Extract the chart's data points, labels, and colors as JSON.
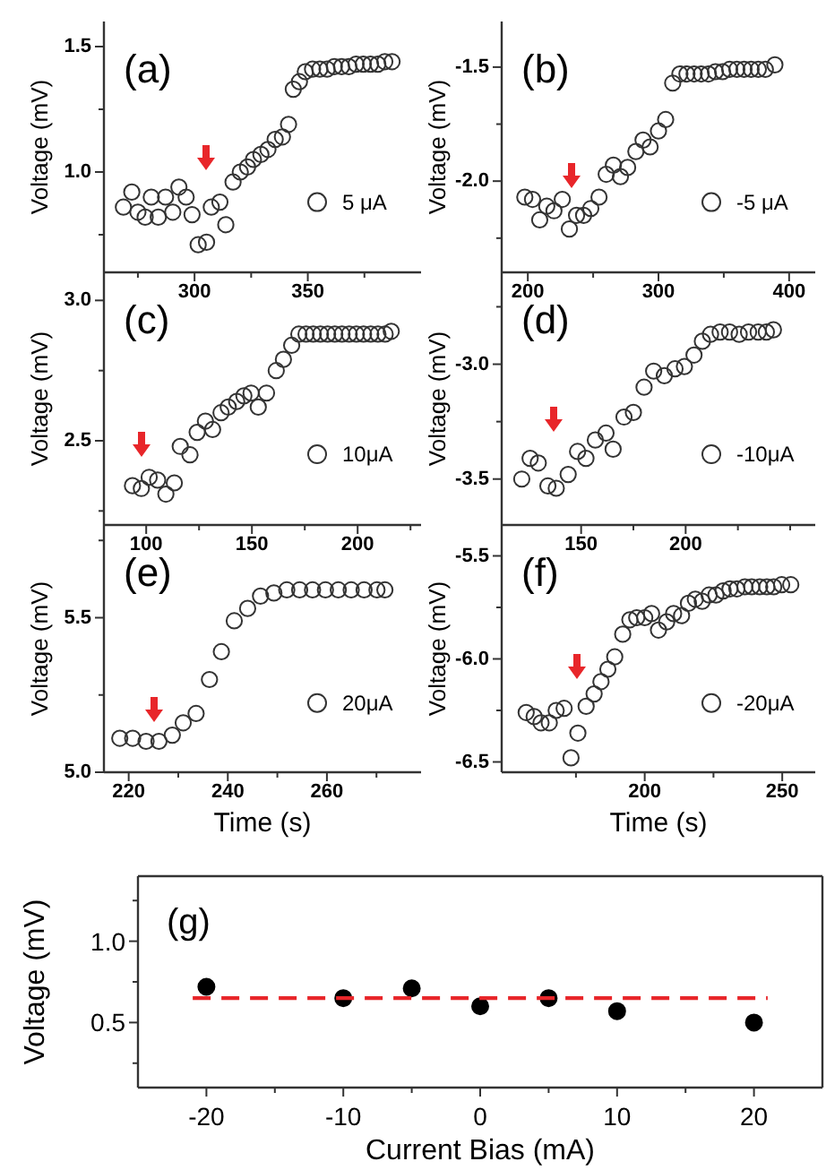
{
  "chart_data": [
    {
      "type": "scatter",
      "title": "(a)",
      "ylabel": "Voltage (mV)",
      "xlim": [
        260,
        400
      ],
      "ylim": [
        0.6,
        1.6
      ],
      "xticks": [
        {
          "value": 275,
          "label": null
        },
        300,
        {
          "value": 325,
          "label": null
        },
        350,
        {
          "value": 375,
          "label": null
        }
      ],
      "yticks": [
        {
          "value": 0.75,
          "label": null
        },
        {
          "value": 1,
          "label": "1.0"
        },
        {
          "value": 1.25,
          "label": null
        },
        1.5
      ],
      "marker": "circle",
      "legend": "right",
      "series": [
        {
          "name": "5 μA",
          "color": "#333333",
          "x": [
            268.6,
            272.3,
            275,
            278.2,
            280.9,
            284,
            287.2,
            290.4,
            293.1,
            296.3,
            298.9,
            301.6,
            305.3,
            307.4,
            311.2,
            313.8,
            317,
            320.2,
            323.4,
            326,
            329.3,
            332.4,
            335.6,
            338.8,
            341.5,
            343.6,
            346.3,
            348.9,
            352.1,
            355.3,
            358.5,
            361.7,
            364.9,
            368.1,
            371.3,
            374.5,
            377.7,
            380.9,
            384,
            387.2
          ],
          "values": [
            0.86,
            0.92,
            0.84,
            0.82,
            0.9,
            0.82,
            0.9,
            0.84,
            0.94,
            0.9,
            0.83,
            0.71,
            0.72,
            0.86,
            0.88,
            0.79,
            0.96,
            1.0,
            1.02,
            1.05,
            1.07,
            1.09,
            1.13,
            1.14,
            1.19,
            1.33,
            1.36,
            1.4,
            1.41,
            1.41,
            1.41,
            1.42,
            1.42,
            1.42,
            1.43,
            1.43,
            1.43,
            1.43,
            1.44,
            1.44
          ]
        }
      ]
    },
    {
      "type": "scatter",
      "title": "(b)",
      "ylabel": "Voltage (mV)",
      "xlim": [
        180,
        420
      ],
      "ylim": [
        -2.4,
        -1.3
      ],
      "xticks": [
        200,
        {
          "value": 250,
          "label": null
        },
        300,
        {
          "value": 350,
          "label": null
        },
        400
      ],
      "yticks": [
        {
          "value": -2.25,
          "label": null
        },
        {
          "value": -2,
          "label": "-2.0"
        },
        {
          "value": -1.75,
          "label": null
        },
        -1.5
      ],
      "marker": "circle",
      "legend": "right",
      "series": [
        {
          "name": "-5 μA",
          "color": "#333333",
          "x": [
            197.7,
            203.6,
            209.1,
            214.5,
            220,
            226.4,
            231.8,
            237.3,
            242.7,
            248.2,
            254.5,
            260,
            265.5,
            270.9,
            276.4,
            282.7,
            288.2,
            293.6,
            300,
            305.5,
            310.9,
            316.4,
            321.8,
            327.3,
            332.7,
            338.2,
            343.6,
            349.1,
            354.5,
            360,
            365.5,
            370.9,
            376.4,
            381.8,
            389.1
          ],
          "values": [
            -2.07,
            -2.08,
            -2.17,
            -2.11,
            -2.13,
            -2.08,
            -2.21,
            -2.15,
            -2.15,
            -2.12,
            -2.07,
            -1.97,
            -1.93,
            -1.98,
            -1.94,
            -1.87,
            -1.82,
            -1.85,
            -1.78,
            -1.73,
            -1.57,
            -1.53,
            -1.53,
            -1.53,
            -1.53,
            -1.53,
            -1.52,
            -1.52,
            -1.51,
            -1.51,
            -1.51,
            -1.51,
            -1.51,
            -1.51,
            -1.49
          ]
        }
      ]
    },
    {
      "type": "scatter",
      "title": "(c)",
      "ylabel": "Voltage (mV)",
      "xlim": [
        80,
        230
      ],
      "ylim": [
        2.2,
        3.1
      ],
      "xticks": [
        100,
        {
          "value": 125,
          "label": null
        },
        150,
        {
          "value": 175,
          "label": null
        },
        200,
        {
          "value": 225,
          "label": null
        }
      ],
      "yticks": [
        {
          "value": 2.25,
          "label": null
        },
        2.5,
        {
          "value": 2.75,
          "label": null
        },
        {
          "value": 3,
          "label": "3.0"
        }
      ],
      "marker": "circle",
      "legend": "right",
      "series": [
        {
          "name": "10μA",
          "color": "#333333",
          "x": [
            93.5,
            97.7,
            101.4,
            105.4,
            109.3,
            113.3,
            116.1,
            120.7,
            124.1,
            128,
            131.4,
            135.4,
            138.8,
            142.8,
            146.2,
            149.6,
            153,
            156.9,
            161.5,
            164.9,
            168.8,
            172.2,
            175.6,
            179,
            182.4,
            185.8,
            189.2,
            192.6,
            196,
            199.4,
            202.8,
            206.2,
            209.6,
            213,
            215.9
          ],
          "values": [
            2.34,
            2.33,
            2.37,
            2.36,
            2.31,
            2.35,
            2.48,
            2.45,
            2.53,
            2.57,
            2.54,
            2.6,
            2.62,
            2.64,
            2.66,
            2.67,
            2.62,
            2.67,
            2.75,
            2.79,
            2.84,
            2.88,
            2.88,
            2.88,
            2.88,
            2.88,
            2.88,
            2.88,
            2.88,
            2.88,
            2.88,
            2.88,
            2.88,
            2.88,
            2.89
          ]
        }
      ]
    },
    {
      "type": "scatter",
      "title": "(d)",
      "ylabel": "Voltage (mV)",
      "xlim": [
        112,
        262
      ],
      "ylim": [
        -3.7,
        -2.6
      ],
      "xticks": [
        150,
        {
          "value": 175,
          "label": null
        },
        200,
        {
          "value": 225,
          "label": null
        },
        {
          "value": 250,
          "label": null
        }
      ],
      "yticks": [
        -3.5,
        {
          "value": -3.25,
          "label": null
        },
        {
          "value": -3,
          "label": "-3.0"
        },
        {
          "value": -2.75,
          "label": null
        }
      ],
      "marker": "circle",
      "legend": "right",
      "series": [
        {
          "name": "-10μA",
          "color": "#333333",
          "x": [
            121.6,
            125.6,
            129.5,
            134.1,
            138.1,
            143.8,
            148.3,
            152.3,
            156.8,
            161.9,
            165.3,
            170.5,
            175,
            180.1,
            184.7,
            189.8,
            194.9,
            199.4,
            204,
            208,
            211.9,
            216.5,
            221,
            225.6,
            230.1,
            234.7,
            238.6,
            242
          ],
          "values": [
            -3.5,
            -3.41,
            -3.43,
            -3.53,
            -3.54,
            -3.48,
            -3.38,
            -3.41,
            -3.33,
            -3.3,
            -3.37,
            -3.23,
            -3.21,
            -3.1,
            -3.03,
            -3.05,
            -3.02,
            -3.01,
            -2.96,
            -2.9,
            -2.87,
            -2.86,
            -2.86,
            -2.87,
            -2.86,
            -2.86,
            -2.86,
            -2.85
          ]
        }
      ]
    },
    {
      "type": "scatter",
      "title": "(e)",
      "xlabel": "Time (s)",
      "ylabel": "Voltage (mV)",
      "xlim": [
        215,
        279
      ],
      "ylim": [
        5.0,
        5.8
      ],
      "xticks": [
        220,
        {
          "value": 230,
          "label": null
        },
        240,
        {
          "value": 250,
          "label": null
        },
        260,
        {
          "value": 270,
          "label": null
        }
      ],
      "yticks": [
        {
          "value": 5,
          "label": "5.0"
        },
        {
          "value": 5.25,
          "label": null
        },
        5.5,
        {
          "value": 5.75,
          "label": null
        }
      ],
      "marker": "circle",
      "legend": "right",
      "series": [
        {
          "name": "20μA",
          "color": "#333333",
          "x": [
            218.2,
            220.8,
            223.5,
            226.1,
            228.8,
            231,
            233.6,
            236.3,
            238.7,
            241.3,
            244,
            246.6,
            249.3,
            251.9,
            254.5,
            257.1,
            259.7,
            262.3,
            264.9,
            267.5,
            270.1,
            271.7
          ],
          "values": [
            5.11,
            5.11,
            5.1,
            5.1,
            5.12,
            5.16,
            5.19,
            5.3,
            5.39,
            5.49,
            5.53,
            5.57,
            5.58,
            5.59,
            5.59,
            5.59,
            5.59,
            5.59,
            5.59,
            5.59,
            5.59,
            5.59
          ]
        }
      ]
    },
    {
      "type": "scatter",
      "title": "(f)",
      "xlabel": "Time (s)",
      "ylabel": "Voltage (mV)",
      "xlim": [
        148,
        262
      ],
      "ylim": [
        -6.55,
        -5.35
      ],
      "xticks": [
        {
          "value": 175,
          "label": null
        },
        200,
        {
          "value": 225,
          "label": null
        },
        250
      ],
      "yticks": [
        -6.5,
        {
          "value": -6.25,
          "label": null
        },
        {
          "value": -6,
          "label": "-6.0"
        },
        {
          "value": -5.75,
          "label": null
        },
        -5.5
      ],
      "marker": "circle",
      "legend": "right",
      "series": [
        {
          "name": "-20μA",
          "color": "#333333",
          "x": [
            156.9,
            159.8,
            162.3,
            165.3,
            167.8,
            170.7,
            173.2,
            175.7,
            178.7,
            181.6,
            184.1,
            186.6,
            189.1,
            192,
            194.6,
            197.1,
            200,
            202.5,
            205,
            208,
            210.5,
            213.4,
            215.9,
            218.4,
            220.9,
            223.4,
            225.9,
            228.5,
            231,
            233.5,
            236.4,
            238.9,
            241.8,
            244.4,
            246.9,
            249.8,
            253.1
          ],
          "values": [
            -6.26,
            -6.28,
            -6.31,
            -6.31,
            -6.25,
            -6.24,
            -6.48,
            -6.36,
            -6.23,
            -6.17,
            -6.11,
            -6.05,
            -5.99,
            -5.88,
            -5.81,
            -5.8,
            -5.8,
            -5.78,
            -5.86,
            -5.82,
            -5.78,
            -5.79,
            -5.73,
            -5.71,
            -5.72,
            -5.69,
            -5.69,
            -5.67,
            -5.66,
            -5.66,
            -5.65,
            -5.65,
            -5.65,
            -5.65,
            -5.65,
            -5.64,
            -5.64
          ]
        }
      ]
    },
    {
      "type": "scatter",
      "title": "(g)",
      "xlabel": "Current Bias (mA)",
      "ylabel": "Voltage (mV)",
      "xlim": [
        -25,
        25
      ],
      "ylim": [
        0.1,
        1.4
      ],
      "xticks": [
        -20,
        {
          "value": -15,
          "label": null
        },
        -10,
        {
          "value": -5,
          "label": null
        },
        0,
        {
          "value": 5,
          "label": null
        },
        10,
        {
          "value": 15,
          "label": null
        },
        20
      ],
      "yticks": [
        {
          "value": 0.25,
          "label": null
        },
        0.5,
        {
          "value": 0.75,
          "label": null
        },
        {
          "value": 1,
          "label": "1.0"
        },
        {
          "value": 1.25,
          "label": null
        }
      ],
      "series": [
        {
          "marker": "circle",
          "color": "#000000",
          "x": [
            -20,
            -10,
            -5,
            0,
            5,
            10,
            20
          ],
          "values": [
            0.72,
            0.65,
            0.71,
            0.6,
            0.65,
            0.57,
            0.5
          ]
        },
        {
          "type": "line",
          "color": "#e8262a",
          "line_style": "dashed",
          "x": [
            -21,
            21
          ],
          "values": [
            0.65,
            0.65
          ]
        }
      ]
    }
  ]
}
